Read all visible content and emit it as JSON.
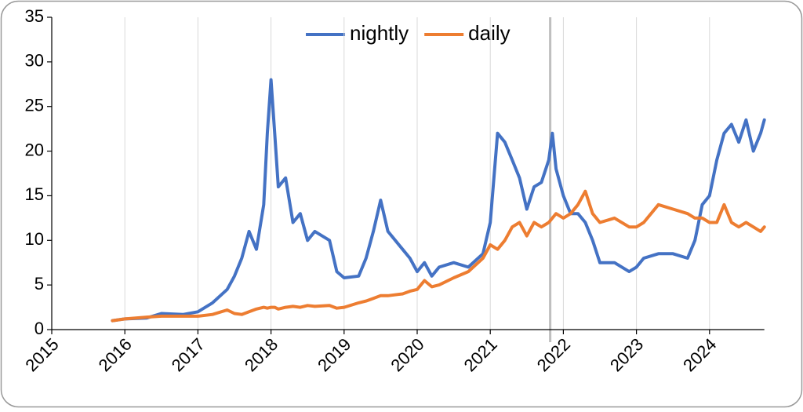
{
  "chart_data": {
    "type": "line",
    "x": [
      2015.83,
      2016.0,
      2016.3,
      2016.5,
      2016.8,
      2017.0,
      2017.2,
      2017.4,
      2017.5,
      2017.6,
      2017.7,
      2017.8,
      2017.9,
      2017.95,
      2018.0,
      2018.05,
      2018.1,
      2018.2,
      2018.3,
      2018.4,
      2018.5,
      2018.6,
      2018.8,
      2018.9,
      2019.0,
      2019.2,
      2019.3,
      2019.4,
      2019.5,
      2019.6,
      2019.8,
      2019.9,
      2020.0,
      2020.1,
      2020.2,
      2020.3,
      2020.5,
      2020.7,
      2020.9,
      2021.0,
      2021.1,
      2021.2,
      2021.3,
      2021.4,
      2021.5,
      2021.6,
      2021.7,
      2021.8,
      2021.85,
      2021.9,
      2022.0,
      2022.1,
      2022.2,
      2022.3,
      2022.4,
      2022.5,
      2022.7,
      2022.9,
      2023.0,
      2023.1,
      2023.3,
      2023.5,
      2023.7,
      2023.8,
      2023.9,
      2024.0,
      2024.1,
      2024.2,
      2024.3,
      2024.4,
      2024.5,
      2024.6,
      2024.7,
      2024.75
    ],
    "series": [
      {
        "name": "nightly",
        "color": "#4472c4",
        "values": [
          1.0,
          1.2,
          1.3,
          1.8,
          1.7,
          2.0,
          3.0,
          4.5,
          6,
          8,
          11,
          9,
          14,
          22,
          28,
          22,
          16,
          17,
          12,
          13,
          10,
          11,
          10,
          6.5,
          5.8,
          6,
          8,
          11,
          14.5,
          11,
          9,
          8,
          6.5,
          7.5,
          6,
          7,
          7.5,
          7,
          8.5,
          12,
          22,
          21,
          19,
          17,
          13.5,
          16,
          16.5,
          19,
          22,
          18,
          15,
          13,
          13,
          12,
          10,
          7.5,
          7.5,
          6.5,
          7,
          8,
          8.5,
          8.5,
          8,
          10,
          14,
          15,
          19,
          22,
          23,
          21,
          23.5,
          20,
          22,
          23.5
        ]
      },
      {
        "name": "daily",
        "color": "#ed7d31",
        "values": [
          1.0,
          1.2,
          1.4,
          1.5,
          1.5,
          1.5,
          1.7,
          2.2,
          1.8,
          1.7,
          2.0,
          2.3,
          2.5,
          2.4,
          2.5,
          2.5,
          2.3,
          2.5,
          2.6,
          2.5,
          2.7,
          2.6,
          2.7,
          2.4,
          2.5,
          3.0,
          3.2,
          3.5,
          3.8,
          3.8,
          4.0,
          4.3,
          4.5,
          5.5,
          4.8,
          5.0,
          5.8,
          6.5,
          8.0,
          9.5,
          9.0,
          10,
          11.5,
          12,
          10.5,
          12,
          11.5,
          12,
          12.5,
          13,
          12.5,
          13,
          14,
          15.5,
          13,
          12,
          12.5,
          11.5,
          11.5,
          12,
          14,
          13.5,
          13,
          12.5,
          12.5,
          12,
          12,
          14,
          12,
          11.5,
          12,
          11.5,
          11,
          11.5
        ]
      }
    ],
    "xlim": [
      2015,
      2024.75
    ],
    "xticks": [
      2015,
      2016,
      2017,
      2018,
      2019,
      2020,
      2021,
      2022,
      2023,
      2024
    ],
    "ylim": [
      0,
      35
    ],
    "yticks": [
      0,
      5,
      10,
      15,
      20,
      25,
      30,
      35
    ],
    "vline_x": 2021.82,
    "grid": "x",
    "legend": "top"
  }
}
